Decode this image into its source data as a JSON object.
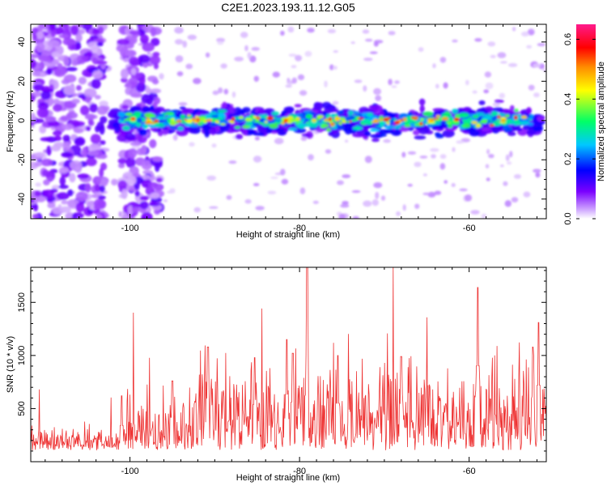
{
  "chart_data": [
    {
      "type": "heatmap",
      "title": "C2E1.2023.193.11.12.G05",
      "xlabel": "Height of straight line (km)",
      "ylabel": "Frequency (Hz)",
      "xlim": [
        -111.7,
        -50.9
      ],
      "ylim": [
        -50,
        49
      ],
      "x_ticks": [
        -100,
        -80,
        -60
      ],
      "y_ticks": [
        -40,
        -20,
        0,
        20,
        40
      ],
      "colorbar": {
        "label": "Normalized spectral amplitude",
        "range": [
          0.0,
          0.65
        ],
        "ticks": [
          0.0,
          0.2,
          0.4,
          0.6
        ],
        "colors": [
          "#ffffff",
          "#d6b3ff",
          "#7a00ff",
          "#0000ff",
          "#00c8ff",
          "#00ff66",
          "#ffff00",
          "#ff8c00",
          "#ff0000",
          "#ff1a8c"
        ]
      },
      "features": {
        "band_center_frequency_hz": 0,
        "band_half_width_hz": 6,
        "band_x_start_km": -102,
        "band_x_end_km": -51.5,
        "broadband_noise_regions_km": [
          [
            -111.7,
            -103
          ],
          [
            -101,
            -96.5
          ]
        ]
      }
    },
    {
      "type": "line",
      "xlabel": "Height of straight line (km)",
      "ylabel": "SNR (10 * v/v)",
      "xlim": [
        -111.7,
        -50.9
      ],
      "ylim": [
        0,
        1830
      ],
      "x_ticks": [
        -100,
        -80,
        -60
      ],
      "y_ticks": [
        500,
        1000,
        1500
      ],
      "color": "#ee3333",
      "baseline": 180,
      "peaks": [
        {
          "x": -101,
          "y": 620
        },
        {
          "x": -95,
          "y": 760
        },
        {
          "x": -90.8,
          "y": 1080
        },
        {
          "x": -85.3,
          "y": 980
        },
        {
          "x": -81.5,
          "y": 1150
        },
        {
          "x": -80.8,
          "y": 1020
        },
        {
          "x": -79.1,
          "y": 1830
        },
        {
          "x": -75.5,
          "y": 1000
        },
        {
          "x": -68,
          "y": 990
        },
        {
          "x": -59,
          "y": 1640
        },
        {
          "x": -52.5,
          "y": 1080
        },
        {
          "x": -51.8,
          "y": 1310
        }
      ]
    }
  ]
}
